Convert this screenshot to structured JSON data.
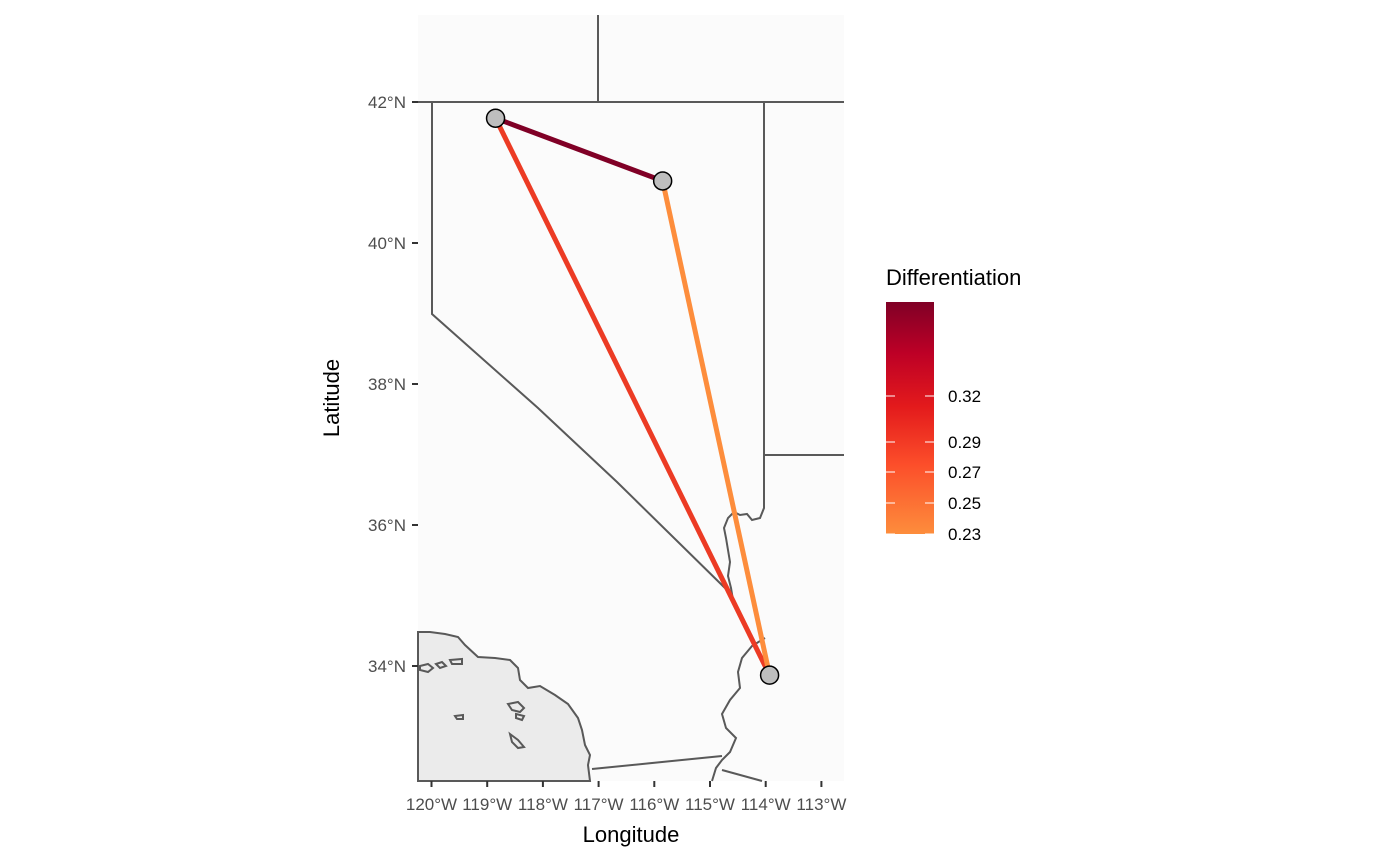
{
  "map": {
    "x_axis_title": "Longitude",
    "y_axis_title": "Latitude",
    "x_ticks": [
      "120°W",
      "119°W",
      "118°W",
      "117°W",
      "116°W",
      "115°W",
      "114°W",
      "113°W"
    ],
    "y_ticks": [
      "34°N",
      "36°N",
      "38°N",
      "40°N",
      "42°N"
    ],
    "panel_background": "#fbfbfb",
    "land_background": "#ffffff",
    "ocean_fill": "#ebebeb",
    "border_color": "#595959"
  },
  "legend": {
    "title": "Differentiation",
    "labels": [
      "0.32",
      "0.29",
      "0.27",
      "0.25",
      "0.23"
    ],
    "colors": [
      "#800026",
      "#bd0026",
      "#e31a1c",
      "#fc4e2a",
      "#fd8d3c"
    ]
  },
  "sites": [
    {
      "lon": -118.85,
      "lat": 41.77
    },
    {
      "lon": -115.85,
      "lat": 40.88
    },
    {
      "lon": -113.93,
      "lat": 33.87
    }
  ],
  "connections": [
    {
      "from": 0,
      "to": 1,
      "value": 0.36,
      "color": "#800026"
    },
    {
      "from": 0,
      "to": 2,
      "value": 0.28,
      "color": "#ec3b24"
    },
    {
      "from": 1,
      "to": 2,
      "value": 0.23,
      "color": "#fd8d3c"
    }
  ]
}
